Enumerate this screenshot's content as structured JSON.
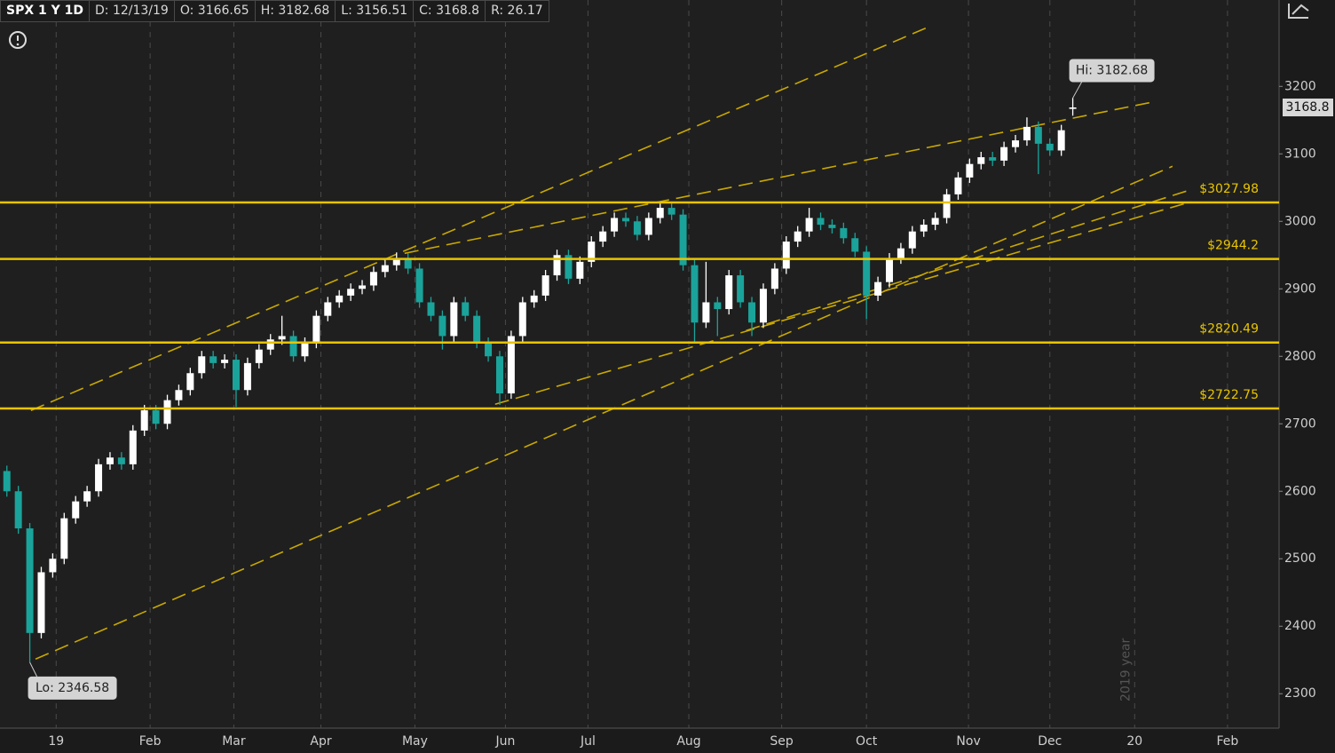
{
  "chart_data": {
    "type": "candlestick",
    "header": [
      "SPX 1 Y 1D",
      "D: 12/13/19",
      "O: 3166.65",
      "H: 3182.68",
      "L: 3156.51",
      "C: 3168.8",
      "R: 26.17"
    ],
    "open": [
      2630,
      2600,
      2545,
      2390,
      2480,
      2500,
      2560,
      2585,
      2600,
      2640,
      2650,
      2640,
      2690,
      2720,
      2700,
      2735,
      2750,
      2775,
      2800,
      2790,
      2795,
      2750,
      2790,
      2810,
      2825,
      2830,
      2800,
      2820,
      2860,
      2880,
      2890,
      2900,
      2905,
      2925,
      2935,
      2945,
      2930,
      2880,
      2860,
      2830,
      2880,
      2860,
      2820,
      2800,
      2745,
      2830,
      2880,
      2890,
      2920,
      2950,
      2915,
      2940,
      2970,
      2985,
      3005,
      3000,
      2980,
      3005,
      3020,
      3010,
      2935,
      2850,
      2880,
      2870,
      2920,
      2880,
      2850,
      2900,
      2930,
      2970,
      2985,
      3005,
      2995,
      2990,
      2975,
      2955,
      2890,
      2910,
      2945,
      2960,
      2985,
      2995,
      3005,
      3040,
      3065,
      3085,
      3095,
      3090,
      3110,
      3120,
      3140,
      3115,
      3105,
      3166.65
    ],
    "high": [
      2638,
      2608,
      2553,
      2488,
      2508,
      2568,
      2593,
      2608,
      2648,
      2658,
      2658,
      2698,
      2728,
      2728,
      2743,
      2758,
      2783,
      2808,
      2808,
      2803,
      2803,
      2798,
      2818,
      2833,
      2860,
      2838,
      2828,
      2868,
      2888,
      2898,
      2908,
      2913,
      2933,
      2943,
      2954,
      2953,
      2938,
      2888,
      2868,
      2888,
      2888,
      2868,
      2828,
      2808,
      2838,
      2888,
      2898,
      2928,
      2958,
      2958,
      2948,
      2978,
      2993,
      3013,
      3013,
      3008,
      3013,
      3028,
      3028,
      3018,
      2943,
      2940,
      2888,
      2928,
      2928,
      2888,
      2908,
      2938,
      2978,
      2993,
      3020,
      3013,
      3003,
      2998,
      2983,
      2963,
      2918,
      2953,
      2968,
      2993,
      3003,
      3013,
      3048,
      3073,
      3093,
      3103,
      3103,
      3118,
      3128,
      3154,
      3148,
      3123,
      3143,
      3182.68
    ],
    "low": [
      2592,
      2537,
      2346.58,
      2382,
      2472,
      2492,
      2552,
      2577,
      2592,
      2632,
      2632,
      2632,
      2682,
      2692,
      2692,
      2727,
      2742,
      2767,
      2782,
      2782,
      2725,
      2742,
      2782,
      2802,
      2817,
      2792,
      2792,
      2812,
      2852,
      2872,
      2882,
      2892,
      2897,
      2917,
      2927,
      2922,
      2872,
      2852,
      2810,
      2822,
      2852,
      2812,
      2792,
      2728,
      2737,
      2822,
      2872,
      2882,
      2912,
      2907,
      2907,
      2932,
      2962,
      2977,
      2992,
      2972,
      2972,
      2997,
      3002,
      2927,
      2822,
      2842,
      2830,
      2862,
      2872,
      2830,
      2842,
      2892,
      2922,
      2962,
      2977,
      2987,
      2982,
      2967,
      2947,
      2855,
      2882,
      2902,
      2937,
      2952,
      2977,
      2987,
      2997,
      3032,
      3057,
      3077,
      3082,
      3082,
      3102,
      3112,
      3070,
      3097,
      3097,
      3156.51
    ],
    "close": [
      2600,
      2545,
      2390,
      2480,
      2500,
      2560,
      2585,
      2600,
      2640,
      2650,
      2640,
      2690,
      2720,
      2700,
      2735,
      2750,
      2775,
      2800,
      2790,
      2795,
      2750,
      2790,
      2810,
      2825,
      2830,
      2800,
      2820,
      2860,
      2880,
      2890,
      2900,
      2905,
      2925,
      2935,
      2945,
      2930,
      2880,
      2860,
      2830,
      2880,
      2860,
      2820,
      2800,
      2745,
      2830,
      2880,
      2890,
      2920,
      2950,
      2915,
      2940,
      2970,
      2985,
      3005,
      3000,
      2980,
      3005,
      3020,
      3010,
      2935,
      2850,
      2880,
      2870,
      2920,
      2880,
      2850,
      2900,
      2930,
      2970,
      2985,
      3005,
      2995,
      2990,
      2975,
      2955,
      2890,
      2910,
      2945,
      2960,
      2985,
      2995,
      3005,
      3040,
      3065,
      3085,
      3095,
      3090,
      3110,
      3120,
      3140,
      3115,
      3105,
      3135,
      3168.8
    ],
    "up_color": "#ffffff",
    "down_color": "#1aa39a",
    "xlim": [
      -0.6,
      111.0
    ],
    "xticks": [
      {
        "value": 4.3,
        "label": "19"
      },
      {
        "value": 12.5,
        "label": "Feb"
      },
      {
        "value": 19.8,
        "label": "Mar"
      },
      {
        "value": 27.4,
        "label": "Apr"
      },
      {
        "value": 35.6,
        "label": "May"
      },
      {
        "value": 43.5,
        "label": "Jun"
      },
      {
        "value": 50.7,
        "label": "Jul"
      },
      {
        "value": 59.5,
        "label": "Aug"
      },
      {
        "value": 67.6,
        "label": "Sep"
      },
      {
        "value": 75,
        "label": "Oct"
      },
      {
        "value": 83.9,
        "label": "Nov"
      },
      {
        "value": 91,
        "label": "Dec"
      },
      {
        "value": 98.4,
        "label": "20"
      },
      {
        "value": 106.5,
        "label": "Feb"
      }
    ],
    "ylim": [
      2249,
      3328
    ],
    "yticks": [
      2300,
      2400,
      2500,
      2600,
      2700,
      2800,
      2900,
      3000,
      3100,
      3200
    ],
    "grid": "x",
    "levels": [
      {
        "value": 3027.98,
        "label": "$3027.98"
      },
      {
        "value": 2944.2,
        "label": "$2944.2"
      },
      {
        "value": 2820.49,
        "label": "$2820.49"
      },
      {
        "value": 2722.75,
        "label": "$2722.75"
      }
    ],
    "level_color": "#e8c400",
    "trendlines": [
      {
        "x": [
          2.1,
          80.4
        ],
        "y": [
          2719.7,
          3288
        ]
      },
      {
        "x": [
          34.7,
          100.2
        ],
        "y": [
          2952.6,
          3177.6
        ]
      },
      {
        "x": [
          2.5,
          101.7
        ],
        "y": [
          2351.3,
          3081.6
        ]
      },
      {
        "x": [
          42.6,
          103.3
        ],
        "y": [
          2728.9,
          3028.9
        ]
      },
      {
        "x": [
          64.5,
          102.9
        ],
        "y": [
          2838.2,
          3044.7
        ]
      }
    ],
    "trend_color": "#c9a800",
    "high_label": "Hi: 3182.68",
    "low_label": "Lo: 2346.58",
    "last_price": {
      "value": 3168.8,
      "label": "3168.8"
    },
    "year_marker": {
      "value": 98.4,
      "label": "2019 year"
    }
  }
}
